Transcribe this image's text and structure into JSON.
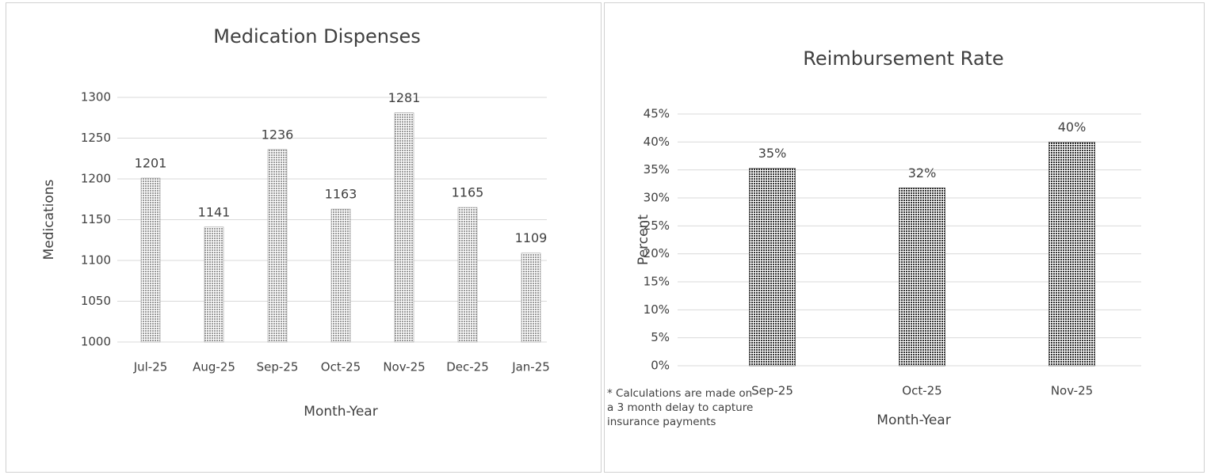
{
  "chart_data": [
    {
      "type": "bar",
      "title": "Medication Dispenses",
      "x_label": "Month-Year",
      "y_label": "Medications",
      "categories": [
        "Jul-25",
        "Aug-25",
        "Sep-25",
        "Oct-25",
        "Nov-25",
        "Dec-25",
        "Jan-25"
      ],
      "values": [
        1201,
        1141,
        1236,
        1163,
        1281,
        1165,
        1109
      ],
      "color": "#9a9a9a",
      "ylim": [
        1000,
        1300
      ],
      "yticks": [
        1000,
        1050,
        1100,
        1150,
        1200,
        1250,
        1300
      ],
      "grid": true
    },
    {
      "type": "bar",
      "title": "Reimbursement Rate",
      "x_label": "Month-Year",
      "y_label": "Percent",
      "note": "* Calculations are made on a 3 month delay to capture insurance payments",
      "categories": [
        "Sep-25",
        "Oct-25",
        "Nov-25"
      ],
      "values": [
        35.3,
        31.8,
        40
      ],
      "value_labels": [
        "35%",
        "32%",
        "40%"
      ],
      "color": "#303030",
      "ylim": [
        0,
        45
      ],
      "yticks": [
        {
          "value": 0,
          "label": "0%"
        },
        {
          "value": 5,
          "label": "5%"
        },
        {
          "value": 10,
          "label": "10%"
        },
        {
          "value": 15,
          "label": "15%"
        },
        {
          "value": 20,
          "label": "20%"
        },
        {
          "value": 25,
          "label": "25%"
        },
        {
          "value": 30,
          "label": "30%"
        },
        {
          "value": 35,
          "label": "35%"
        },
        {
          "value": 40,
          "label": "40%"
        },
        {
          "value": 45,
          "label": "45%"
        }
      ],
      "grid": true
    }
  ]
}
